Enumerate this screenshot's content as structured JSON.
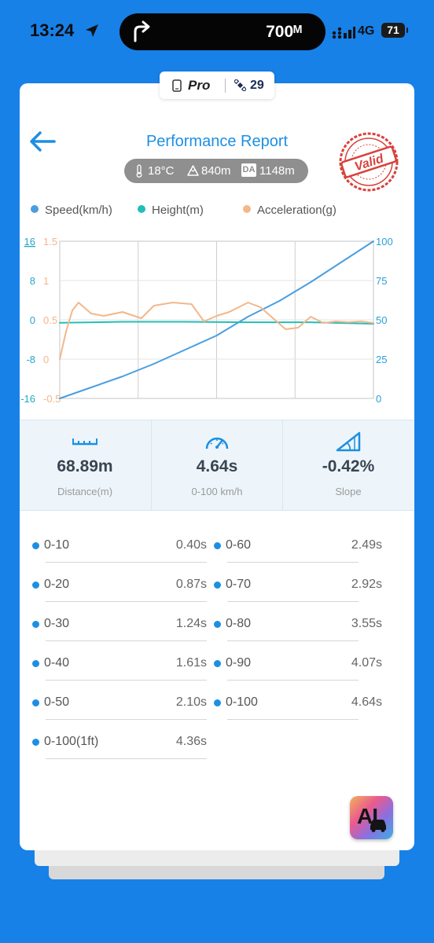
{
  "status_bar": {
    "time": "13:24",
    "island_text": "700ᴹ",
    "network": "4G",
    "battery": "71"
  },
  "badge": {
    "pro_label": "Pro",
    "satellites": "29"
  },
  "header": {
    "title": "Performance Report",
    "temperature": "18°C",
    "altitude": "840m",
    "da_badge": "DA",
    "density_altitude": "1148m",
    "stamp_text": "Valid"
  },
  "chart_data": {
    "type": "line",
    "series": [
      {
        "name": "Speed(km/h)",
        "color": "#4a9ee0",
        "axis": "right",
        "x": [
          0,
          0.5,
          1,
          1.5,
          2,
          2.5,
          3,
          3.5,
          4,
          4.5,
          5
        ],
        "values": [
          0,
          7,
          14,
          22,
          31,
          40,
          52,
          62,
          74,
          87,
          100
        ]
      },
      {
        "name": "Height(m)",
        "color": "#24bdb8",
        "axis": "left",
        "x": [
          0,
          1,
          2,
          3,
          4,
          5
        ],
        "values": [
          -0.6,
          -0.4,
          -0.4,
          -0.5,
          -0.5,
          -0.8
        ]
      },
      {
        "name": "Acceleration(g)",
        "color": "#f2b78a",
        "axis": "left2",
        "x": [
          0,
          0.1,
          0.2,
          0.3,
          0.5,
          0.7,
          1.0,
          1.3,
          1.5,
          1.8,
          2.1,
          2.3,
          2.5,
          2.7,
          3.0,
          3.2,
          3.4,
          3.6,
          3.8,
          4.0,
          4.2,
          4.4,
          4.6,
          4.8,
          5.0
        ],
        "values": [
          0,
          0.35,
          0.62,
          0.72,
          0.58,
          0.55,
          0.6,
          0.52,
          0.68,
          0.72,
          0.7,
          0.48,
          0.55,
          0.6,
          0.72,
          0.66,
          0.52,
          0.38,
          0.4,
          0.54,
          0.46,
          0.48,
          0.47,
          0.48,
          0.46
        ]
      }
    ],
    "axes": {
      "left_speed_ticks": [
        "16",
        "8",
        "0",
        "-8",
        "-16"
      ],
      "left_accel_ticks": [
        "1.5",
        "1",
        "0.5",
        "0",
        "-0.5"
      ],
      "right_ticks": [
        "100",
        "75",
        "50",
        "25",
        "0"
      ],
      "left_ylim": [
        -16,
        16
      ],
      "left2_ylim": [
        -0.5,
        1.5
      ],
      "right_ylim": [
        0,
        100
      ],
      "xlim": [
        0,
        5
      ]
    },
    "grid": true,
    "legend": "top"
  },
  "metrics": [
    {
      "icon": "ruler-icon",
      "value": "68.89m",
      "label": "Distance(m)"
    },
    {
      "icon": "speedometer-icon",
      "value": "4.64s",
      "label": "0-100 km/h"
    },
    {
      "icon": "slope-icon",
      "value": "-0.42%",
      "label": "Slope"
    }
  ],
  "splits_left": [
    {
      "label": "0-10",
      "value": "0.40s"
    },
    {
      "label": "0-20",
      "value": "0.87s"
    },
    {
      "label": "0-30",
      "value": "1.24s"
    },
    {
      "label": "0-40",
      "value": "1.61s"
    },
    {
      "label": "0-50",
      "value": "2.10s"
    },
    {
      "label": "0-100(1ft)",
      "value": "4.36s"
    }
  ],
  "splits_right": [
    {
      "label": "0-60",
      "value": "2.49s"
    },
    {
      "label": "0-70",
      "value": "2.92s"
    },
    {
      "label": "0-80",
      "value": "3.55s"
    },
    {
      "label": "0-90",
      "value": "4.07s"
    },
    {
      "label": "0-100",
      "value": "4.64s"
    }
  ],
  "ai_button": {
    "label": "AI"
  }
}
